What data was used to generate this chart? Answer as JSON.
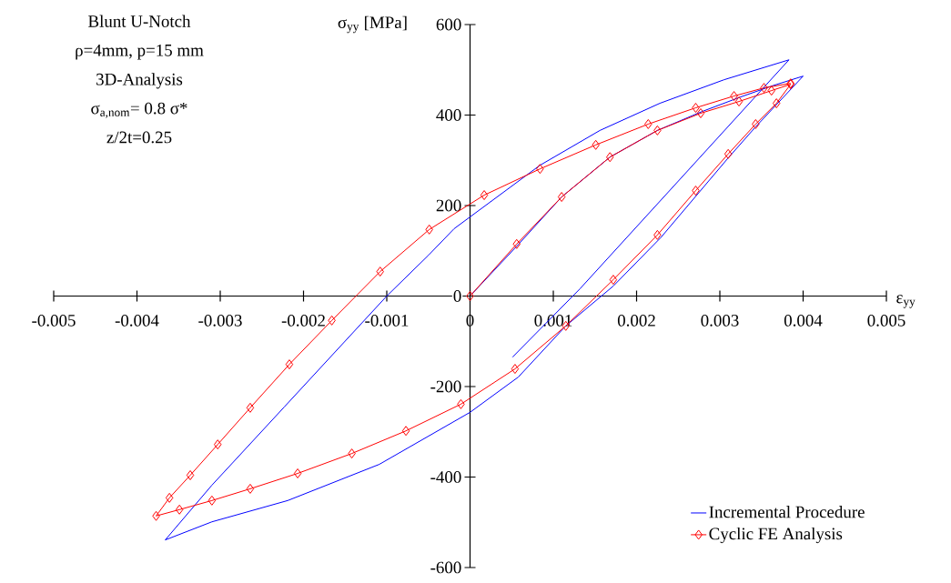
{
  "chart_data": {
    "type": "line",
    "xlabel": "ε$_{yy}$",
    "ylabel": "σ$_{yy}$ [MPa]",
    "annotations": [
      "Blunt U-Notch",
      "ρ=4mm, p=15 mm",
      "3D-Analysis",
      "σ$_{a,nom}$= 0.8 σ*",
      "z/2t=0.25"
    ],
    "xlim": [
      -0.005,
      0.005
    ],
    "ylim": [
      -600,
      600
    ],
    "xticks": [
      -0.005,
      -0.004,
      -0.003,
      -0.002,
      -0.001,
      0,
      0.001,
      0.002,
      0.003,
      0.004,
      0.005
    ],
    "yticks": [
      -600,
      -400,
      -200,
      0,
      200,
      400,
      600
    ],
    "grid": false,
    "legend": "bottom right",
    "series": [
      {
        "name": "Incremental Procedure",
        "color": "#0000ff",
        "marker": "none",
        "x": [
          0,
          0.00058,
          0.0011,
          0.00168,
          0.00225,
          0.00279,
          0.00325,
          0.00362,
          0.004,
          0.00343,
          0.00309,
          0.00229,
          0.00172,
          0.00115,
          0.00058,
          0,
          -0.00109,
          -0.00219,
          -0.0031,
          -0.00366,
          -0.0031,
          -0.00223,
          -0.001,
          -0.0005,
          -0.00019,
          0.00084,
          0.00156,
          0.00228,
          0.00305,
          0.00383,
          0.00132,
          0.00051
        ],
        "values": [
          0,
          114,
          219,
          307,
          366,
          408,
          440,
          464,
          486,
          374,
          303,
          129,
          22,
          -66,
          -179,
          -257,
          -372,
          -452,
          -499,
          -539,
          -418,
          -245,
          0,
          90,
          149,
          289,
          366,
          426,
          478,
          522,
          16,
          -135
        ]
      },
      {
        "name": "Cyclic FE Analysis",
        "color": "#ff0000",
        "marker": "diamond",
        "x": [
          0,
          0.00056,
          0.0011,
          0.00168,
          0.00225,
          0.00277,
          0.00323,
          0.00362,
          0.00385,
          0.00368,
          0.00343,
          0.0031,
          0.00271,
          0.00225,
          0.00172,
          0.00115,
          0.00054,
          -0.00011,
          -0.00077,
          -0.00142,
          -0.00207,
          -0.00264,
          -0.0031,
          -0.00349,
          -0.00377,
          -0.00361,
          -0.00336,
          -0.00303,
          -0.00264,
          -0.00217,
          -0.00166,
          -0.00108,
          -0.00049,
          0.00017,
          0.00084,
          0.00151,
          0.00214,
          0.00271,
          0.00317,
          0.00353,
          0.00385
        ],
        "values": [
          0,
          115,
          219,
          307,
          366,
          404,
          430,
          454,
          468,
          426,
          380,
          314,
          233,
          135,
          36,
          -66,
          -161,
          -239,
          -298,
          -348,
          -392,
          -426,
          -452,
          -472,
          -486,
          -446,
          -396,
          -328,
          -247,
          -151,
          -54,
          54,
          147,
          223,
          281,
          334,
          380,
          416,
          442,
          460,
          470
        ]
      }
    ]
  }
}
